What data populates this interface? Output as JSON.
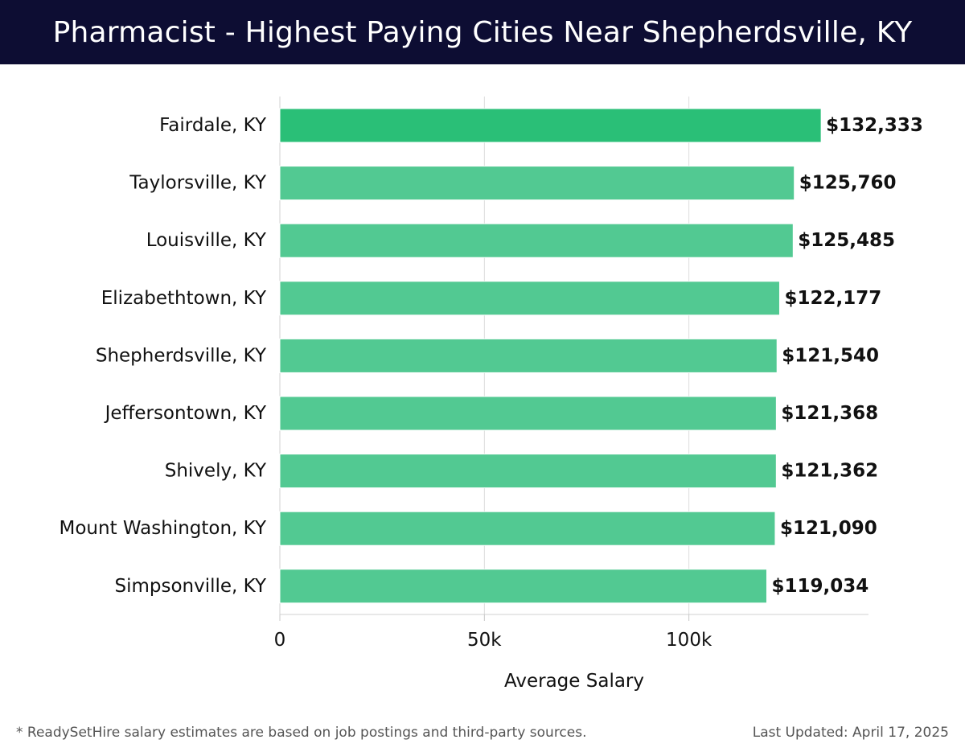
{
  "header": {
    "title": "Pharmacist - Highest Paying Cities Near Shepherdsville, KY"
  },
  "chart_data": {
    "type": "bar",
    "orientation": "horizontal",
    "title": "Pharmacist - Highest Paying Cities Near Shepherdsville, KY",
    "xlabel": "Average Salary",
    "ylabel": "",
    "xlim": [
      0,
      140000
    ],
    "xticks": [
      0,
      50000,
      100000
    ],
    "xtick_labels": [
      "0",
      "50k",
      "100k"
    ],
    "grid": "vertical",
    "bar_color_top": "#2abf77",
    "bar_color_rest": "#52c992",
    "categories": [
      "Fairdale, KY",
      "Taylorsville, KY",
      "Louisville, KY",
      "Elizabethtown, KY",
      "Shepherdsville, KY",
      "Jeffersontown, KY",
      "Shively, KY",
      "Mount Washington, KY",
      "Simpsonville, KY"
    ],
    "values": [
      132333,
      125760,
      125485,
      122177,
      121540,
      121368,
      121362,
      121090,
      119034
    ],
    "data_labels": [
      "$132,333",
      "$125,760",
      "$125,485",
      "$122,177",
      "$121,540",
      "$121,368",
      "$121,362",
      "$121,090",
      "$119,034"
    ]
  },
  "footer": {
    "note": "* ReadySetHire salary estimates are based on job postings and third-party sources.",
    "updated": "Last Updated: April 17, 2025"
  }
}
